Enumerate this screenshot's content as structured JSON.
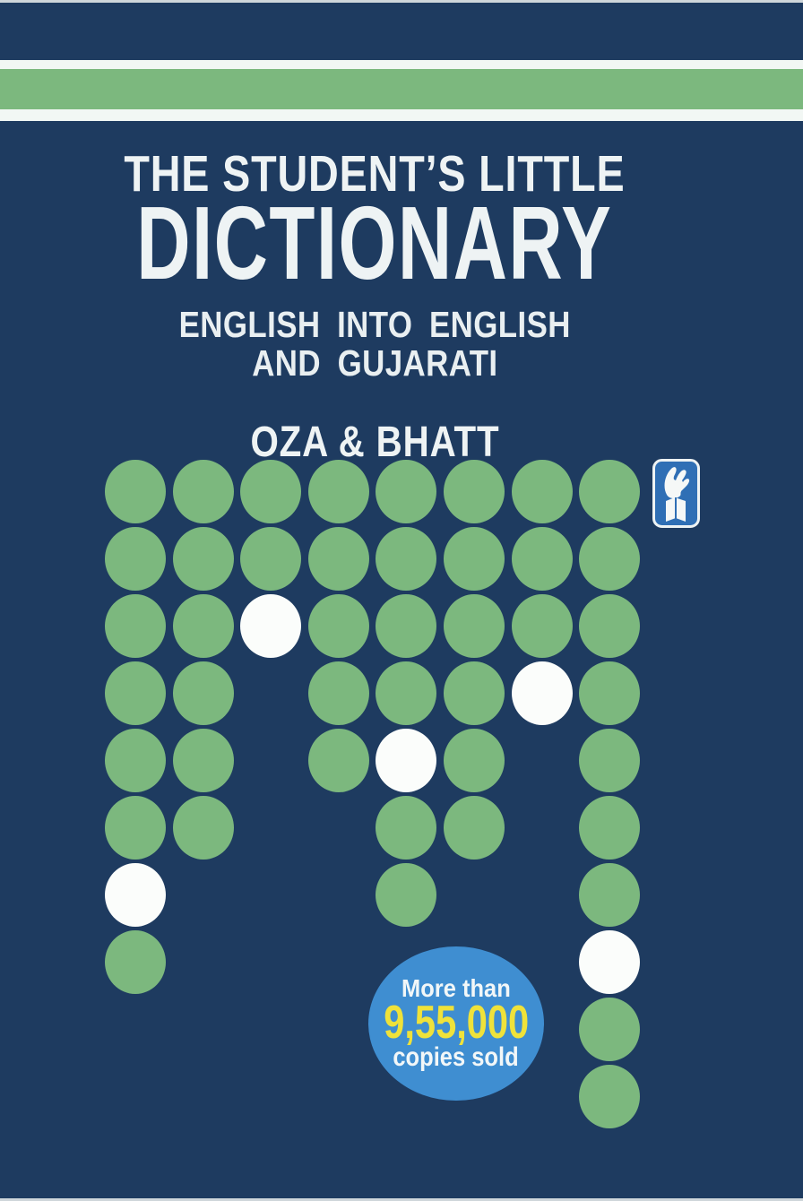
{
  "cover": {
    "title_line1": "THE STUDENT’S LITTLE",
    "title_line2": "DICTIONARY",
    "subtitle_line1": "ENGLISH INTO ENGLISH",
    "subtitle_line2": "AND GUJARATI",
    "authors": "OZA & BHATT"
  },
  "badge": {
    "line1": "More than",
    "line2": "9,55,000",
    "line3": "copies sold"
  },
  "icons": {
    "publisher_logo": "hand-holding-book-emblem"
  },
  "colors": {
    "background_navy": "#1e3b60",
    "edge_light": "#cfd6da",
    "stripe_white": "#f2f7f4",
    "stripe_green": "#7cb87e",
    "dot_green": "#7cb87e",
    "dot_white": "#fbfdfb",
    "title_white": "#eef3f4",
    "subtitle_white": "#e9eff1",
    "badge_blue": "#3f8ed1",
    "badge_yellow": "#efe23a",
    "badge_white": "#f2f7f8",
    "logo_blue": "#2f6fb5",
    "logo_white": "#f5f8f7"
  },
  "dots": {
    "legend": "G = green dot, W = white dot, . = empty",
    "pattern": [
      "GGGGGGGG",
      "GGGGGGGG",
      "GGWGGGGG",
      "GG.GGGWG",
      "GG.GWG.G",
      "GG..GG.G",
      "W...G..G",
      "G......W",
      ".......G",
      ".......G"
    ]
  }
}
